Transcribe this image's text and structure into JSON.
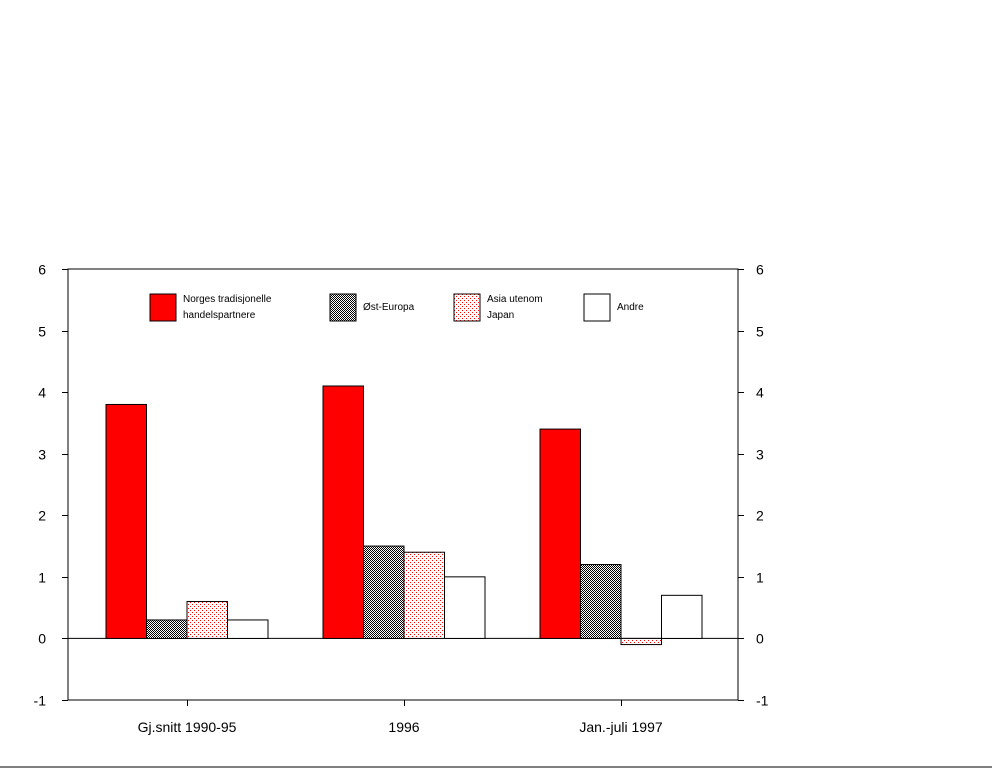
{
  "chart_data": {
    "type": "bar",
    "title": "",
    "xlabel": "",
    "ylabel": "",
    "ylim": [
      -1,
      6
    ],
    "yticks": [
      "-1",
      "0",
      "1",
      "2",
      "3",
      "4",
      "5",
      "6"
    ],
    "categories": [
      "Gj.snitt 1990-95",
      "1996",
      "Jan.-juli 1997"
    ],
    "series": [
      {
        "name": "Norges tradisjonelle handelspartnere",
        "label_lines": [
          "Norges tradisjonelle",
          "handelspartnere"
        ],
        "values": [
          3.8,
          4.1,
          3.4
        ],
        "color": "#ff0000",
        "pattern": "solid"
      },
      {
        "name": "Øst-Europa",
        "label_lines": [
          "Øst-Europa"
        ],
        "values": [
          0.3,
          1.5,
          1.2
        ],
        "color": "#808080",
        "pattern": "checker"
      },
      {
        "name": "Asia utenom Japan",
        "label_lines": [
          "Asia utenom",
          "Japan"
        ],
        "values": [
          0.6,
          1.4,
          -0.1
        ],
        "color": "#ff0000",
        "pattern": "dots"
      },
      {
        "name": "Andre",
        "label_lines": [
          "Andre"
        ],
        "values": [
          0.3,
          1.0,
          0.7
        ],
        "color": "#ffffff",
        "pattern": "none"
      }
    ],
    "legend_position": "top",
    "grid": false,
    "secondary_y_axis": true
  }
}
